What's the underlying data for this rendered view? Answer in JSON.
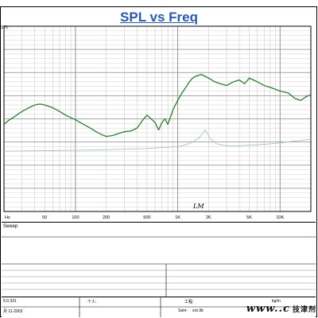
{
  "chart_data": {
    "type": "line",
    "title": "SPL vs Freq",
    "ylabel_fragment": "SPL",
    "x_scale": "log",
    "xlim": [
      20,
      20000
    ],
    "ylim": [
      0,
      1
    ],
    "x_ticks": [
      {
        "value": 20,
        "label": "Hz"
      },
      {
        "value": 50,
        "label": "50"
      },
      {
        "value": 100,
        "label": "100"
      },
      {
        "value": 200,
        "label": "200"
      },
      {
        "value": 500,
        "label": "500"
      },
      {
        "value": 1000,
        "label": "1K"
      },
      {
        "value": 2000,
        "label": "2K"
      },
      {
        "value": 5000,
        "label": "5K"
      },
      {
        "value": 10000,
        "label": "10K"
      }
    ],
    "overlay_text": "LM",
    "grid": true,
    "series": [
      {
        "color": "#2e7d32",
        "points": [
          [
            20,
            0.47
          ],
          [
            22,
            0.49
          ],
          [
            25,
            0.51
          ],
          [
            30,
            0.54
          ],
          [
            35,
            0.56
          ],
          [
            40,
            0.575
          ],
          [
            45,
            0.58
          ],
          [
            50,
            0.575
          ],
          [
            60,
            0.56
          ],
          [
            70,
            0.54
          ],
          [
            80,
            0.52
          ],
          [
            100,
            0.495
          ],
          [
            120,
            0.47
          ],
          [
            140,
            0.45
          ],
          [
            160,
            0.43
          ],
          [
            180,
            0.415
          ],
          [
            200,
            0.405
          ],
          [
            230,
            0.41
          ],
          [
            260,
            0.42
          ],
          [
            300,
            0.43
          ],
          [
            350,
            0.435
          ],
          [
            400,
            0.45
          ],
          [
            450,
            0.49
          ],
          [
            500,
            0.52
          ],
          [
            550,
            0.5
          ],
          [
            600,
            0.48
          ],
          [
            650,
            0.44
          ],
          [
            700,
            0.48
          ],
          [
            750,
            0.5
          ],
          [
            800,
            0.47
          ],
          [
            900,
            0.55
          ],
          [
            1000,
            0.6
          ],
          [
            1100,
            0.64
          ],
          [
            1200,
            0.67
          ],
          [
            1300,
            0.7
          ],
          [
            1400,
            0.72
          ],
          [
            1500,
            0.73
          ],
          [
            1700,
            0.74
          ],
          [
            2000,
            0.72
          ],
          [
            2300,
            0.7
          ],
          [
            2600,
            0.69
          ],
          [
            3000,
            0.68
          ],
          [
            3500,
            0.7
          ],
          [
            4000,
            0.71
          ],
          [
            4500,
            0.69
          ],
          [
            5000,
            0.72
          ],
          [
            6000,
            0.7
          ],
          [
            7000,
            0.68
          ],
          [
            8000,
            0.67
          ],
          [
            9000,
            0.66
          ],
          [
            10000,
            0.65
          ],
          [
            12000,
            0.64
          ],
          [
            14000,
            0.61
          ],
          [
            16000,
            0.6
          ],
          [
            18000,
            0.62
          ],
          [
            20000,
            0.63
          ]
        ]
      },
      {
        "color": "#a5c7a7",
        "points": [
          [
            20,
            0.325
          ],
          [
            50,
            0.328
          ],
          [
            100,
            0.33
          ],
          [
            200,
            0.333
          ],
          [
            300,
            0.336
          ],
          [
            500,
            0.34
          ],
          [
            800,
            0.347
          ],
          [
            1000,
            0.35
          ],
          [
            1200,
            0.36
          ],
          [
            1400,
            0.375
          ],
          [
            1600,
            0.395
          ],
          [
            1750,
            0.42
          ],
          [
            1850,
            0.44
          ],
          [
            1950,
            0.42
          ],
          [
            2100,
            0.39
          ],
          [
            2400,
            0.365
          ],
          [
            3000,
            0.355
          ],
          [
            4000,
            0.355
          ],
          [
            6000,
            0.36
          ],
          [
            8000,
            0.365
          ],
          [
            10000,
            0.37
          ],
          [
            14000,
            0.38
          ],
          [
            20000,
            0.39
          ]
        ]
      }
    ]
  },
  "bottom": {
    "sweep_label": "Sweep"
  },
  "footer": {
    "version": "5.0.331",
    "date": "月 11-2003",
    "person_label": "个人:",
    "engineer_label": "工程:",
    "file_name": "xxx.lib",
    "file_prefix": "Sam-",
    "unit": "kg/m"
  },
  "watermark": {
    "text": "www.",
    "tail": ".c",
    "cn": "技津剂"
  }
}
